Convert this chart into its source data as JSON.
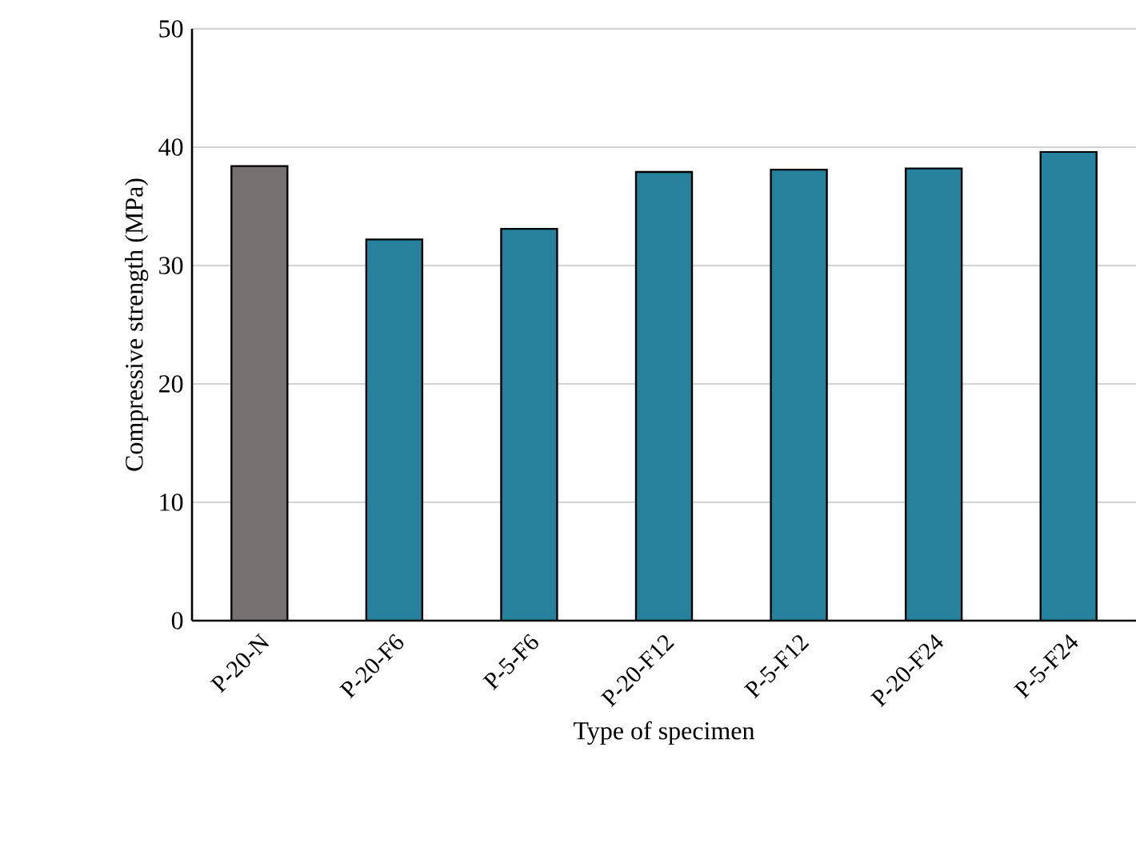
{
  "chart_data": {
    "type": "bar",
    "xlabel": "Type of specimen",
    "ylabel": "Compressive strength (MPa)",
    "categories": [
      "P-20-N",
      "P-20-F6",
      "P-5-F6",
      "P-20-F12",
      "P-5-F12",
      "P-20-F24",
      "P-5-F24"
    ],
    "values": [
      38.4,
      32.2,
      33.1,
      37.9,
      38.1,
      38.2,
      39.6
    ],
    "colors": [
      "#767171",
      "#25819c",
      "#25819c",
      "#25819c",
      "#25819c",
      "#25819c",
      "#25819c"
    ],
    "ylim": [
      0,
      50
    ],
    "yticks": [
      0,
      10,
      20,
      30,
      40,
      50
    ],
    "grid": "y"
  }
}
